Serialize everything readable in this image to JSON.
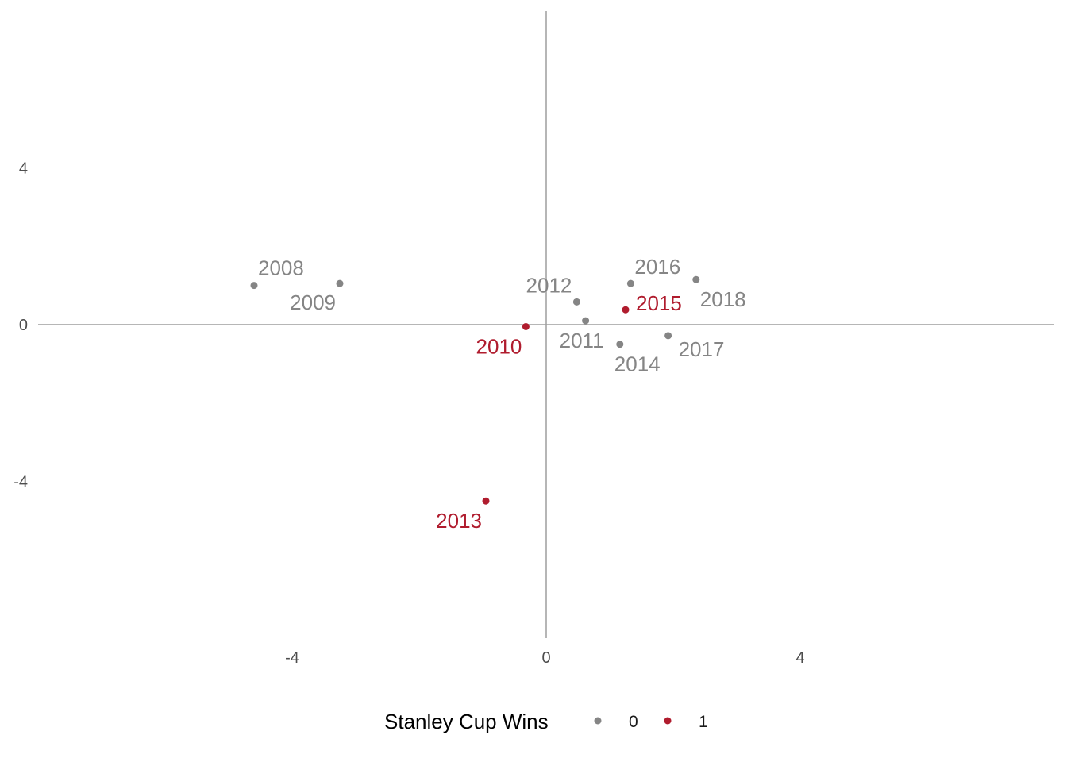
{
  "chart_data": {
    "type": "scatter",
    "title": "",
    "xlabel": "",
    "ylabel": "",
    "xlim": [
      -8,
      8
    ],
    "ylim": [
      -8,
      8
    ],
    "x_ticks": [
      {
        "value": -4,
        "label": "-4"
      },
      {
        "value": 0,
        "label": "0"
      },
      {
        "value": 4,
        "label": "4"
      }
    ],
    "y_ticks": [
      {
        "value": 4,
        "label": "4"
      },
      {
        "value": 0,
        "label": "0"
      },
      {
        "value": -4,
        "label": "-4"
      }
    ],
    "grid": false,
    "zero_lines": true,
    "points": [
      {
        "label": "2008",
        "x": -4.6,
        "y": 1.0,
        "wins": 0
      },
      {
        "label": "2009",
        "x": -3.25,
        "y": 1.05,
        "wins": 0
      },
      {
        "label": "2010",
        "x": -0.32,
        "y": -0.05,
        "wins": 1
      },
      {
        "label": "2011",
        "x": 0.62,
        "y": 0.1,
        "wins": 0
      },
      {
        "label": "2012",
        "x": 0.48,
        "y": 0.58,
        "wins": 0
      },
      {
        "label": "2013",
        "x": -0.95,
        "y": -4.5,
        "wins": 1
      },
      {
        "label": "2014",
        "x": 1.16,
        "y": -0.5,
        "wins": 0
      },
      {
        "label": "2015",
        "x": 1.25,
        "y": 0.38,
        "wins": 1
      },
      {
        "label": "2016",
        "x": 1.33,
        "y": 1.05,
        "wins": 0
      },
      {
        "label": "2017",
        "x": 1.92,
        "y": -0.28,
        "wins": 0
      },
      {
        "label": "2018",
        "x": 2.36,
        "y": 1.15,
        "wins": 0
      }
    ],
    "legend": {
      "title": "Stanley Cup Wins",
      "position": "bottom",
      "entries": [
        {
          "label": "0",
          "color": "#858585"
        },
        {
          "label": "1",
          "color": "#b01c2e"
        }
      ]
    },
    "colors": {
      "0": "#858585",
      "1": "#b01c2e"
    }
  }
}
